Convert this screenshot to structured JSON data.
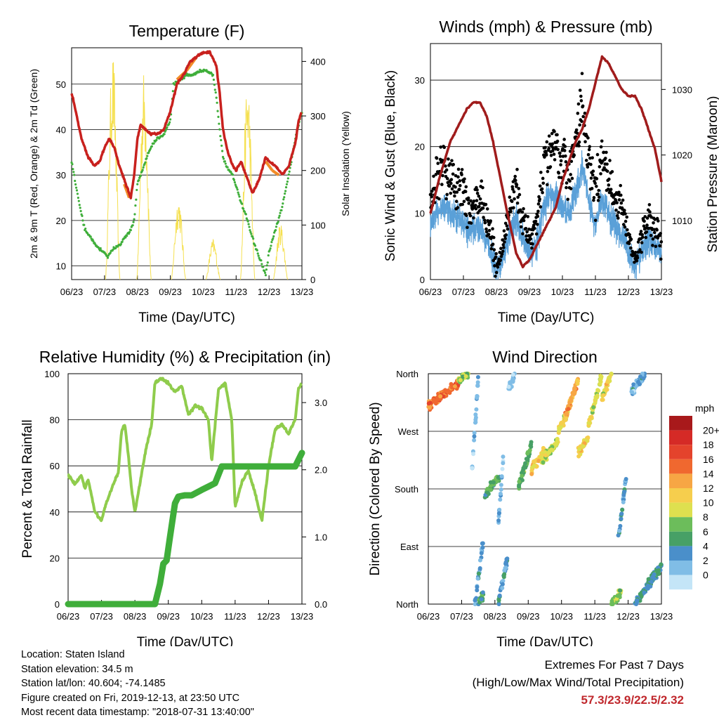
{
  "chart_data": [
    {
      "type": "line",
      "title": "Temperature (F)",
      "xlabel": "Time (Day/UTC)",
      "ylabel": "2m & 9m T (Red, Orange) & 2m Td (Green)",
      "y2label": "Solar Insolation (Yellow)",
      "x_ticks": [
        "06/23",
        "07/23",
        "08/23",
        "09/23",
        "10/23",
        "11/23",
        "12/23",
        "13/23"
      ],
      "ylim": [
        7,
        58
      ],
      "y_ticks": [
        10,
        20,
        30,
        40,
        50
      ],
      "y2lim": [
        0,
        425
      ],
      "y2_ticks": [
        0,
        100,
        200,
        300,
        400
      ],
      "colors": {
        "t2m": "#c8211e",
        "t9m": "#f28c28",
        "td": "#3fae3a",
        "solar": "#f5e050"
      },
      "series": [
        {
          "name": "2m T",
          "x": [
            0,
            0.1,
            0.3,
            0.5,
            0.7,
            0.85,
            1.0,
            1.15,
            1.3,
            1.45,
            1.6,
            1.75,
            1.8,
            1.9,
            2.0,
            2.1,
            2.25,
            2.4,
            2.6,
            2.8,
            3.0,
            3.2,
            3.4,
            3.6,
            3.8,
            4.0,
            4.2,
            4.4,
            4.5,
            4.6,
            4.75,
            4.9,
            5.0,
            5.15,
            5.3,
            5.5,
            5.7,
            5.9,
            6.0,
            6.2,
            6.4,
            6.6,
            6.8,
            6.9,
            7.0
          ],
          "y": [
            48,
            45,
            38,
            34,
            32,
            33,
            36,
            38,
            36,
            32,
            29,
            26,
            25,
            30,
            38,
            41,
            40,
            39,
            39,
            40,
            44,
            50,
            52,
            55,
            56,
            57,
            57,
            54,
            48,
            40,
            35,
            32,
            31,
            33,
            30,
            26,
            29,
            34,
            33,
            32,
            30,
            32,
            37,
            42,
            44
          ]
        },
        {
          "name": "9m T",
          "x": [
            1.6,
            1.7,
            1.75,
            1.8,
            3.2,
            3.5,
            3.8,
            5.9,
            6.1,
            6.3
          ],
          "y": [
            28,
            26,
            25,
            26,
            51,
            53,
            56,
            33,
            31,
            30
          ]
        },
        {
          "name": "2m Td",
          "x": [
            0,
            0.2,
            0.4,
            0.6,
            0.8,
            1.0,
            1.1,
            1.3,
            1.5,
            1.6,
            1.7,
            1.8,
            1.9,
            2.0,
            2.2,
            2.4,
            2.6,
            2.8,
            3.0,
            3.1,
            3.3,
            3.5,
            3.7,
            3.9,
            4.1,
            4.3,
            4.4,
            4.5,
            4.6,
            4.7,
            4.9,
            5.1,
            5.3,
            5.5,
            5.7,
            5.8,
            5.9,
            6.0,
            6.2,
            6.4,
            6.6,
            6.8,
            7.0
          ],
          "y": [
            33,
            25,
            18,
            16,
            14,
            13,
            12,
            14,
            15,
            16,
            17,
            18,
            20,
            28,
            32,
            36,
            38,
            39,
            42,
            50,
            51,
            52,
            52,
            53,
            53,
            52,
            47,
            40,
            34,
            32,
            30,
            25,
            21,
            16,
            12,
            10,
            8,
            13,
            18,
            23,
            30,
            38,
            44
          ]
        }
      ],
      "solar_peaks": [
        1.25,
        2.2,
        3.25,
        4.3,
        5.35,
        6.35
      ],
      "solar_peak_values": [
        420,
        385,
        155,
        75,
        375,
        105
      ]
    },
    {
      "type": "scatter",
      "title": "Winds (mph) & Pressure (mb)",
      "xlabel": "Time (Day/UTC)",
      "ylabel": "Sonic Wind & Gust (Blue, Black)",
      "y2label": "Station Pressure (Maroon)",
      "x_ticks": [
        "06/23",
        "07/23",
        "08/23",
        "09/23",
        "10/23",
        "11/23",
        "12/23",
        "13/23"
      ],
      "ylim": [
        0,
        35.5
      ],
      "y_ticks": [
        0,
        10,
        20,
        30
      ],
      "y2lim": [
        1001,
        1037
      ],
      "y2_ticks": [
        1010,
        1020,
        1030
      ],
      "colors": {
        "wind": "#5aa0d8",
        "gust": "#000000",
        "pressure": "#a01c1c"
      },
      "pressure": {
        "x": [
          0,
          0.3,
          0.6,
          0.9,
          1.1,
          1.3,
          1.5,
          1.7,
          1.9,
          2.1,
          2.3,
          2.6,
          2.8,
          3.0,
          3.2,
          3.4,
          3.6,
          3.8,
          4.0,
          4.2,
          4.4,
          4.6,
          4.8,
          5.0,
          5.2,
          5.4,
          5.6,
          5.8,
          6.0,
          6.2,
          6.4,
          6.6,
          6.8,
          7.0
        ],
        "y": [
          1011,
          1017,
          1022,
          1025,
          1027,
          1028,
          1028,
          1026,
          1022,
          1017,
          1012,
          1005,
          1003,
          1004,
          1006,
          1008,
          1010,
          1012,
          1016,
          1019,
          1022,
          1024,
          1027,
          1031,
          1035,
          1034,
          1032,
          1030,
          1029,
          1029,
          1027,
          1024,
          1021,
          1016
        ]
      },
      "wind_mean": {
        "x": [
          0,
          0.3,
          0.6,
          0.9,
          1.2,
          1.5,
          1.7,
          1.9,
          2.0,
          2.2,
          2.4,
          2.6,
          2.8,
          3.0,
          3.2,
          3.4,
          3.6,
          3.8,
          4.0,
          4.2,
          4.4,
          4.6,
          4.8,
          5.0,
          5.2,
          5.4,
          5.6,
          5.8,
          6.0,
          6.2,
          6.4,
          6.6,
          6.8,
          7.0
        ],
        "y": [
          8,
          11,
          10,
          9,
          7,
          8,
          6,
          3,
          1,
          3,
          7,
          9,
          6,
          4,
          5,
          10,
          13,
          12,
          11,
          10,
          13,
          17,
          12,
          8,
          12,
          10,
          8,
          7,
          4,
          2,
          4,
          6,
          5,
          4
        ]
      }
    },
    {
      "type": "line",
      "title": "Relative Humidity (%) & Precipitation (in)",
      "xlabel": "Time (Day/UTC)",
      "ylabel": "Percent & Total Rainfall",
      "x_ticks": [
        "06/23",
        "07/23",
        "08/23",
        "09/23",
        "10/23",
        "11/23",
        "12/23",
        "13/23"
      ],
      "ylim": [
        0,
        100
      ],
      "y_ticks": [
        0,
        20,
        40,
        60,
        80,
        100
      ],
      "y2lim": [
        0,
        3.43
      ],
      "y2_ticks": [
        "0.0",
        "1.0",
        "2.0",
        "3.0"
      ],
      "colors": {
        "rh": "#8fcc4c",
        "precip": "#3fae3a"
      },
      "series": [
        {
          "name": "RH",
          "x": [
            0,
            0.2,
            0.4,
            0.5,
            0.6,
            0.8,
            1.0,
            1.1,
            1.3,
            1.5,
            1.6,
            1.7,
            1.8,
            1.9,
            2.0,
            2.1,
            2.3,
            2.5,
            2.6,
            2.8,
            3.0,
            3.2,
            3.4,
            3.6,
            3.8,
            4.0,
            4.2,
            4.3,
            4.5,
            4.7,
            4.9,
            5.0,
            5.2,
            5.4,
            5.6,
            5.8,
            6.0,
            6.2,
            6.4,
            6.6,
            6.8,
            6.9,
            7.0
          ],
          "y": [
            56,
            52,
            56,
            50,
            54,
            40,
            36,
            42,
            50,
            57,
            75,
            78,
            65,
            50,
            40,
            48,
            65,
            78,
            96,
            98,
            96,
            92,
            95,
            82,
            86,
            85,
            80,
            62,
            93,
            96,
            80,
            42,
            53,
            58,
            48,
            36,
            60,
            76,
            78,
            74,
            80,
            94,
            96
          ]
        },
        {
          "name": "Precip",
          "x": [
            0,
            1.0,
            2.0,
            2.6,
            2.75,
            2.85,
            2.95,
            3.05,
            3.2,
            3.3,
            3.5,
            3.7,
            4.0,
            4.2,
            4.4,
            4.6,
            5.0,
            5.5,
            6.0,
            6.5,
            6.8,
            6.9,
            7.0
          ],
          "y": [
            0,
            0,
            0,
            0,
            0.3,
            0.6,
            0.65,
            1.0,
            1.5,
            1.6,
            1.62,
            1.62,
            1.7,
            1.75,
            1.8,
            2.05,
            2.05,
            2.05,
            2.05,
            2.05,
            2.05,
            2.15,
            2.25
          ]
        }
      ]
    },
    {
      "type": "scatter",
      "title": "Wind Direction",
      "xlabel": "Time (Day/UTC)",
      "ylabel": "Direction (Colored By Speed)",
      "x_ticks": [
        "06/23",
        "07/23",
        "08/23",
        "09/23",
        "10/23",
        "11/23",
        "12/23",
        "13/23"
      ],
      "y_ticks": [
        "North",
        "East",
        "South",
        "West",
        "North"
      ],
      "ylim": [
        0,
        360
      ],
      "legend": {
        "title": "mph",
        "labels": [
          "20+",
          "18",
          "16",
          "14",
          "12",
          "10",
          "8",
          "6",
          "4",
          "2",
          "0"
        ],
        "colors": [
          "#a8191b",
          "#d52a26",
          "#e4432c",
          "#f0682f",
          "#f7a644",
          "#f6ce4d",
          "#dee04f",
          "#6cbd5b",
          "#47a066",
          "#4a8fca",
          "#80bde6",
          "#c4e5f7"
        ]
      },
      "segments": [
        {
          "x": [
            0,
            0.9
          ],
          "dir": [
            310,
            345
          ],
          "speed": 16
        },
        {
          "x": [
            0.9,
            1.2
          ],
          "dir": [
            350,
            360
          ],
          "speed": 9
        },
        {
          "x": [
            1.3,
            1.5
          ],
          "dir": [
            200,
            350
          ],
          "speed": 2
        },
        {
          "x": [
            1.4,
            1.65
          ],
          "dir": [
            0,
            100
          ],
          "speed": 3
        },
        {
          "x": [
            1.5,
            1.65
          ],
          "dir": [
            0,
            15
          ],
          "speed": 6
        },
        {
          "x": [
            1.7,
            2.15
          ],
          "dir": [
            170,
            200
          ],
          "speed": 7
        },
        {
          "x": [
            2.1,
            2.25
          ],
          "dir": [
            120,
            230
          ],
          "speed": 3
        },
        {
          "x": [
            2.1,
            2.4
          ],
          "dir": [
            0,
            80
          ],
          "speed": 4
        },
        {
          "x": [
            2.4,
            2.6
          ],
          "dir": [
            335,
            360
          ],
          "speed": 2
        },
        {
          "x": [
            2.7,
            3.1
          ],
          "dir": [
            180,
            250
          ],
          "speed": 7
        },
        {
          "x": [
            3.1,
            3.5
          ],
          "dir": [
            210,
            240
          ],
          "speed": 12
        },
        {
          "x": [
            3.4,
            3.9
          ],
          "dir": [
            225,
            255
          ],
          "speed": 10
        },
        {
          "x": [
            3.9,
            4.2
          ],
          "dir": [
            270,
            300
          ],
          "speed": 10
        },
        {
          "x": [
            4.1,
            4.5
          ],
          "dir": [
            290,
            350
          ],
          "speed": 14
        },
        {
          "x": [
            4.5,
            4.8
          ],
          "dir": [
            235,
            260
          ],
          "speed": 12
        },
        {
          "x": [
            4.8,
            5.2
          ],
          "dir": [
            275,
            355
          ],
          "speed": 10
        },
        {
          "x": [
            5.2,
            5.5
          ],
          "dir": [
            320,
            360
          ],
          "speed": 11
        },
        {
          "x": [
            5.5,
            5.8
          ],
          "dir": [
            0,
            20
          ],
          "speed": 9
        },
        {
          "x": [
            5.7,
            5.95
          ],
          "dir": [
            100,
            200
          ],
          "speed": 4
        },
        {
          "x": [
            6.1,
            6.5
          ],
          "dir": [
            330,
            360
          ],
          "speed": 3
        },
        {
          "x": [
            6.2,
            7.0
          ],
          "dir": [
            0,
            60
          ],
          "speed": 5
        }
      ]
    }
  ],
  "info": {
    "location": "Location: Staten Island",
    "elevation": "Station elevation: 34.5 m",
    "latlon": "Station lat/lon: 40.604; -74.1485",
    "created": "Figure created on Fri, 2019-12-13, at 23:50 UTC",
    "recent": "Most recent data timestamp: \"2018-07-31 13:40:00\""
  },
  "extremes": {
    "title": "Extremes For Past 7 Days",
    "subtitle": "(High/Low/Max Wind/Total Precipitation)",
    "values": "57.3/23.9/22.5/2.32"
  }
}
